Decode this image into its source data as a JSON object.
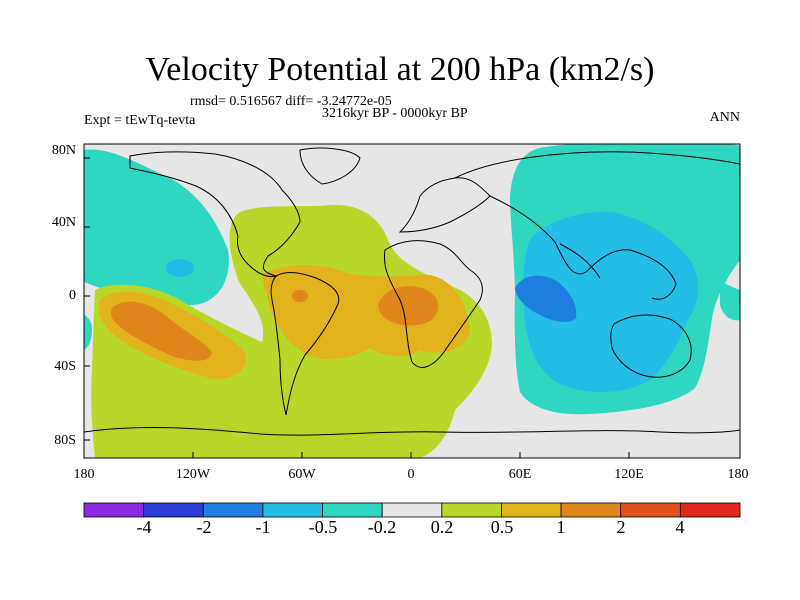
{
  "title": "Velocity Potential at 200 hPa (km2/s)",
  "stats_line": "rmsd= 0.516567 diff= -3.24772e-05",
  "experiment_label": "Expt = tEwTq-tevta",
  "period_label": "3216kyr BP - 0000kyr BP",
  "season_label": "ANN",
  "y_tick_labels": [
    "80N",
    "40N",
    "0",
    "40S",
    "80S"
  ],
  "x_tick_labels": [
    "180",
    "120W",
    "60W",
    "0",
    "60E",
    "120E",
    "180"
  ],
  "colorbar": {
    "labels": [
      "-4",
      "-2",
      "-1",
      "-0.5",
      "-0.2",
      "0.2",
      "0.5",
      "1",
      "2",
      "4"
    ],
    "colors": [
      "#8a2be2",
      "#2a3ed6",
      "#1f7fe0",
      "#23bde6",
      "#2fd7c1",
      "#e6e6e6",
      "#b8d72a",
      "#e1b21c",
      "#e0871c",
      "#e0531c",
      "#e0281c"
    ]
  },
  "field_colors": {
    "neutral": "#e6e6e6",
    "cyan": "#2fd7c1",
    "sky": "#23bde6",
    "blue": "#1f7fe0",
    "lime": "#b8d72a",
    "gold": "#e1b21c",
    "orange": "#e0871c"
  }
}
